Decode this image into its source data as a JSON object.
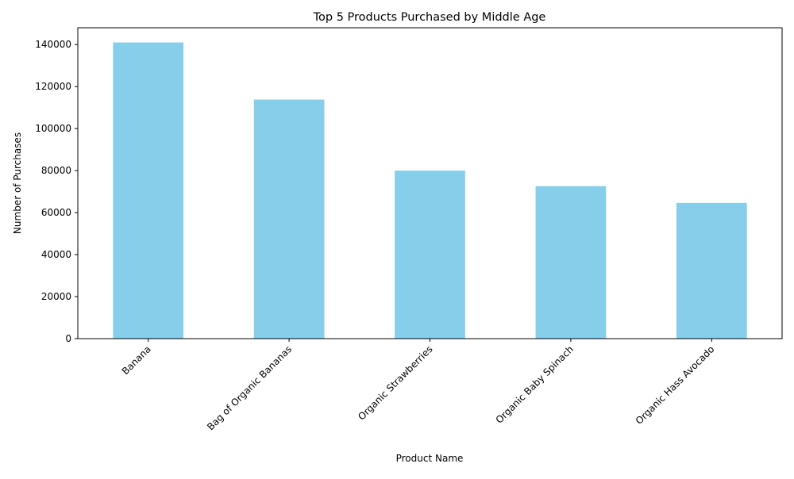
{
  "chart_data": {
    "type": "bar",
    "title": "Top 5 Products Purchased by Middle Age",
    "xlabel": "Product Name",
    "ylabel": "Number of Purchases",
    "categories": [
      "Banana",
      "Bag of Organic Bananas",
      "Organic Strawberries",
      "Organic Baby Spinach",
      "Organic Hass Avocado"
    ],
    "values": [
      141000,
      113800,
      80000,
      72600,
      64600
    ],
    "ylim": [
      0,
      148000
    ],
    "yticks": [
      0,
      20000,
      40000,
      60000,
      80000,
      100000,
      120000,
      140000
    ],
    "ytick_labels": [
      "0",
      "20000",
      "40000",
      "60000",
      "80000",
      "100000",
      "120000",
      "140000"
    ],
    "bar_color": "#87ceeb",
    "grid": false,
    "legend": "none",
    "xtick_rotation_deg": 45
  }
}
